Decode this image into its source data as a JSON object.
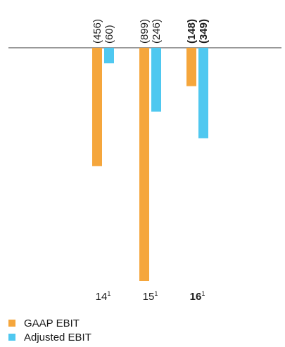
{
  "chart_data": {
    "type": "bar",
    "categories": [
      "14",
      "15",
      "16"
    ],
    "category_superscripts": [
      "1",
      "1",
      "1"
    ],
    "category_bold": [
      false,
      false,
      true
    ],
    "series": [
      {
        "name": "GAAP EBIT",
        "color": "#F5A63C",
        "values": [
          -456,
          -899,
          -148
        ],
        "labels": [
          "(456)",
          "(899)",
          "(148)"
        ]
      },
      {
        "name": "Adjusted EBIT",
        "color": "#4FC8F0",
        "values": [
          -60,
          -246,
          -349
        ],
        "labels": [
          "(60)",
          "(246)",
          "(349)"
        ]
      }
    ],
    "ylim": [
      -899,
      0
    ],
    "title": "",
    "xlabel": "",
    "ylabel": "",
    "grid": false,
    "legend_position": "bottom-left"
  }
}
